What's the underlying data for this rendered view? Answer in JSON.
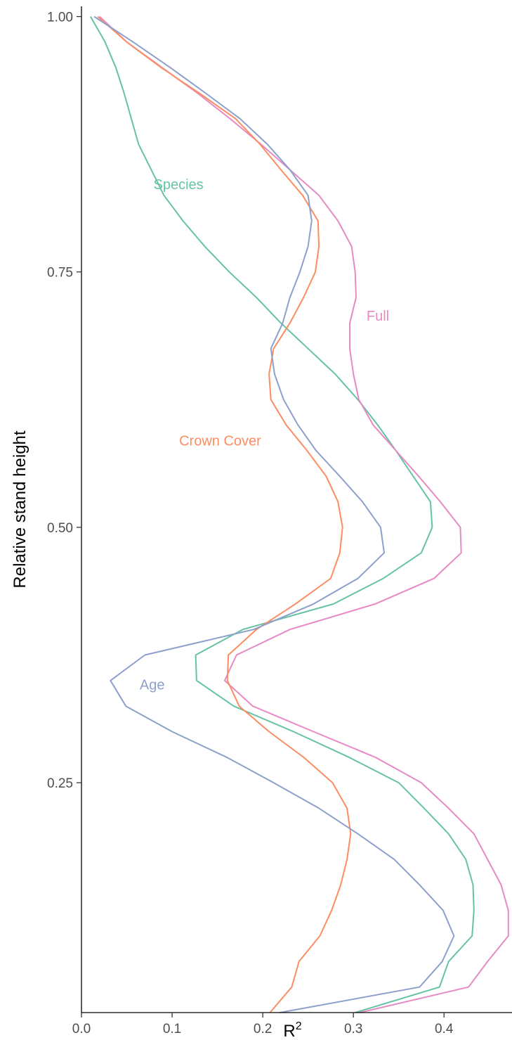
{
  "chart_data": {
    "type": "line",
    "xlabel": "R",
    "xlabel_superscript": "2",
    "ylabel": "Relative stand height",
    "xlim": [
      0,
      0.475
    ],
    "ylim": [
      0.025,
      1.01
    ],
    "x_ticks": [
      0.0,
      0.1,
      0.2,
      0.3,
      0.4
    ],
    "x_tick_labels": [
      "0.0",
      "0.1",
      "0.2",
      "0.3",
      "0.4"
    ],
    "y_ticks": [
      0.25,
      0.5,
      0.75,
      1.0
    ],
    "y_tick_labels": [
      "0.25",
      "0.50",
      "0.75",
      "1.00"
    ],
    "grid": false,
    "legend": "none (direct labels)",
    "series": [
      {
        "name": "Species",
        "color": "#66c2a5",
        "label_at": [
          0.107,
          0.836
        ],
        "points": [
          [
            0.01,
            1.0
          ],
          [
            0.026,
            0.975
          ],
          [
            0.038,
            0.95
          ],
          [
            0.047,
            0.925
          ],
          [
            0.055,
            0.9
          ],
          [
            0.063,
            0.875
          ],
          [
            0.077,
            0.85
          ],
          [
            0.091,
            0.825
          ],
          [
            0.112,
            0.8
          ],
          [
            0.136,
            0.775
          ],
          [
            0.163,
            0.75
          ],
          [
            0.193,
            0.725
          ],
          [
            0.22,
            0.7
          ],
          [
            0.25,
            0.675
          ],
          [
            0.28,
            0.65
          ],
          [
            0.305,
            0.625
          ],
          [
            0.327,
            0.6
          ],
          [
            0.347,
            0.575
          ],
          [
            0.366,
            0.55
          ],
          [
            0.385,
            0.525
          ],
          [
            0.387,
            0.5
          ],
          [
            0.375,
            0.475
          ],
          [
            0.333,
            0.45
          ],
          [
            0.278,
            0.425
          ],
          [
            0.178,
            0.4
          ],
          [
            0.126,
            0.375
          ],
          [
            0.127,
            0.35
          ],
          [
            0.168,
            0.325
          ],
          [
            0.234,
            0.3
          ],
          [
            0.295,
            0.275
          ],
          [
            0.35,
            0.25
          ],
          [
            0.378,
            0.225
          ],
          [
            0.405,
            0.2
          ],
          [
            0.424,
            0.175
          ],
          [
            0.432,
            0.15
          ],
          [
            0.433,
            0.125
          ],
          [
            0.431,
            0.1
          ],
          [
            0.405,
            0.075
          ],
          [
            0.395,
            0.05
          ],
          [
            0.302,
            0.025
          ]
        ]
      },
      {
        "name": "Full",
        "color": "#e78ac3",
        "label_at": [
          0.327,
          0.707
        ],
        "points": [
          [
            0.02,
            1.0
          ],
          [
            0.05,
            0.975
          ],
          [
            0.089,
            0.95
          ],
          [
            0.128,
            0.925
          ],
          [
            0.164,
            0.9
          ],
          [
            0.198,
            0.875
          ],
          [
            0.23,
            0.85
          ],
          [
            0.262,
            0.825
          ],
          [
            0.283,
            0.8
          ],
          [
            0.298,
            0.775
          ],
          [
            0.302,
            0.75
          ],
          [
            0.303,
            0.725
          ],
          [
            0.296,
            0.7
          ],
          [
            0.296,
            0.675
          ],
          [
            0.3,
            0.65
          ],
          [
            0.306,
            0.625
          ],
          [
            0.322,
            0.6
          ],
          [
            0.347,
            0.575
          ],
          [
            0.372,
            0.55
          ],
          [
            0.396,
            0.525
          ],
          [
            0.418,
            0.5
          ],
          [
            0.419,
            0.475
          ],
          [
            0.389,
            0.45
          ],
          [
            0.324,
            0.425
          ],
          [
            0.23,
            0.4
          ],
          [
            0.171,
            0.375
          ],
          [
            0.158,
            0.35
          ],
          [
            0.189,
            0.325
          ],
          [
            0.256,
            0.3
          ],
          [
            0.324,
            0.275
          ],
          [
            0.375,
            0.25
          ],
          [
            0.405,
            0.225
          ],
          [
            0.433,
            0.2
          ],
          [
            0.448,
            0.175
          ],
          [
            0.463,
            0.15
          ],
          [
            0.471,
            0.125
          ],
          [
            0.471,
            0.1
          ],
          [
            0.448,
            0.075
          ],
          [
            0.427,
            0.05
          ],
          [
            0.307,
            0.025
          ]
        ]
      },
      {
        "name": "Crown Cover",
        "color": "#fc8d62",
        "label_at": [
          0.153,
          0.585
        ],
        "points": [
          [
            0.018,
            1.0
          ],
          [
            0.05,
            0.975
          ],
          [
            0.088,
            0.95
          ],
          [
            0.13,
            0.925
          ],
          [
            0.17,
            0.9
          ],
          [
            0.197,
            0.875
          ],
          [
            0.22,
            0.85
          ],
          [
            0.244,
            0.825
          ],
          [
            0.261,
            0.8
          ],
          [
            0.262,
            0.775
          ],
          [
            0.258,
            0.75
          ],
          [
            0.245,
            0.725
          ],
          [
            0.23,
            0.7
          ],
          [
            0.212,
            0.675
          ],
          [
            0.207,
            0.65
          ],
          [
            0.209,
            0.625
          ],
          [
            0.226,
            0.6
          ],
          [
            0.249,
            0.575
          ],
          [
            0.27,
            0.55
          ],
          [
            0.283,
            0.525
          ],
          [
            0.288,
            0.5
          ],
          [
            0.285,
            0.475
          ],
          [
            0.275,
            0.45
          ],
          [
            0.236,
            0.425
          ],
          [
            0.193,
            0.4
          ],
          [
            0.162,
            0.375
          ],
          [
            0.161,
            0.35
          ],
          [
            0.174,
            0.325
          ],
          [
            0.207,
            0.3
          ],
          [
            0.245,
            0.275
          ],
          [
            0.277,
            0.25
          ],
          [
            0.293,
            0.225
          ],
          [
            0.297,
            0.2
          ],
          [
            0.293,
            0.175
          ],
          [
            0.286,
            0.15
          ],
          [
            0.276,
            0.125
          ],
          [
            0.263,
            0.1
          ],
          [
            0.24,
            0.075
          ],
          [
            0.232,
            0.05
          ],
          [
            0.208,
            0.025
          ]
        ]
      },
      {
        "name": "Age",
        "color": "#8da0cb",
        "label_at": [
          0.078,
          0.346
        ],
        "points": [
          [
            0.014,
            1.0
          ],
          [
            0.057,
            0.975
          ],
          [
            0.098,
            0.95
          ],
          [
            0.137,
            0.925
          ],
          [
            0.175,
            0.9
          ],
          [
            0.205,
            0.875
          ],
          [
            0.23,
            0.85
          ],
          [
            0.25,
            0.825
          ],
          [
            0.254,
            0.8
          ],
          [
            0.25,
            0.775
          ],
          [
            0.241,
            0.75
          ],
          [
            0.23,
            0.725
          ],
          [
            0.222,
            0.7
          ],
          [
            0.209,
            0.675
          ],
          [
            0.213,
            0.65
          ],
          [
            0.223,
            0.625
          ],
          [
            0.239,
            0.6
          ],
          [
            0.259,
            0.575
          ],
          [
            0.285,
            0.55
          ],
          [
            0.31,
            0.525
          ],
          [
            0.33,
            0.5
          ],
          [
            0.334,
            0.475
          ],
          [
            0.305,
            0.45
          ],
          [
            0.256,
            0.425
          ],
          [
            0.19,
            0.4
          ],
          [
            0.07,
            0.375
          ],
          [
            0.032,
            0.35
          ],
          [
            0.049,
            0.325
          ],
          [
            0.1,
            0.3
          ],
          [
            0.16,
            0.275
          ],
          [
            0.212,
            0.25
          ],
          [
            0.262,
            0.225
          ],
          [
            0.305,
            0.2
          ],
          [
            0.345,
            0.175
          ],
          [
            0.373,
            0.15
          ],
          [
            0.399,
            0.125
          ],
          [
            0.411,
            0.1
          ],
          [
            0.398,
            0.075
          ],
          [
            0.373,
            0.05
          ],
          [
            0.219,
            0.025
          ]
        ]
      }
    ]
  }
}
